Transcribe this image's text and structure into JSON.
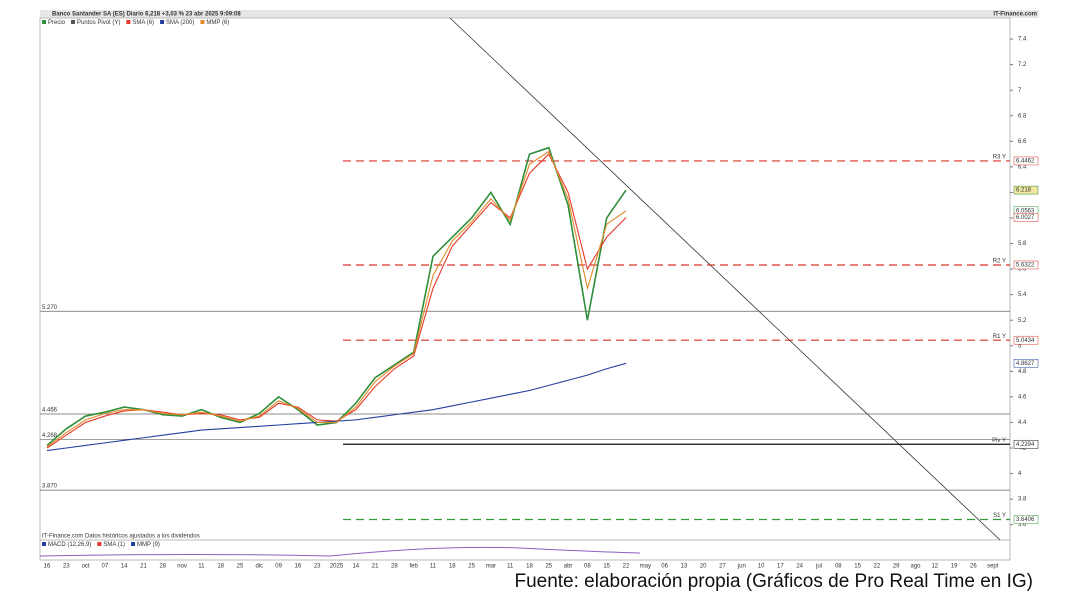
{
  "chart_data": {
    "type": "line",
    "title": "Banco Santander SA (ES) Diario 6,218 +3,03 % 23 abr 2025 9:09:08",
    "source": "IT-Finance.com",
    "categories": [
      "16",
      "23",
      "oct",
      "07",
      "14",
      "21",
      "28",
      "nov",
      "11",
      "18",
      "25",
      "dic",
      "09",
      "16",
      "23",
      "2025",
      "14",
      "21",
      "28",
      "feb",
      "11",
      "18",
      "25",
      "mar",
      "11",
      "18",
      "25",
      "abr",
      "08",
      "15",
      "22",
      "may",
      "06",
      "13",
      "20",
      "27",
      "jun",
      "10",
      "17",
      "24",
      "jul",
      "08",
      "15",
      "22",
      "29",
      "ago",
      "12",
      "19",
      "26",
      "sept"
    ],
    "series": [
      {
        "name": "Precio",
        "color": "#2f8f3a",
        "values": [
          4.22,
          4.35,
          4.45,
          4.48,
          4.52,
          4.5,
          4.46,
          4.45,
          4.5,
          4.44,
          4.4,
          4.47,
          4.6,
          4.5,
          4.38,
          4.4,
          4.55,
          4.75,
          4.85,
          4.95,
          5.7,
          5.85,
          6.0,
          6.2,
          5.95,
          6.5,
          6.55,
          6.1,
          5.2,
          6.0,
          6.218,
          null,
          null,
          null,
          null,
          null,
          null,
          null,
          null,
          null,
          null,
          null,
          null,
          null,
          null,
          null,
          null,
          null,
          null,
          null
        ]
      },
      {
        "name": "SMA (6)",
        "color": "#e53a2a",
        "values": [
          4.2,
          4.3,
          4.4,
          4.45,
          4.49,
          4.5,
          4.48,
          4.46,
          4.47,
          4.46,
          4.42,
          4.44,
          4.55,
          4.52,
          4.42,
          4.41,
          4.5,
          4.68,
          4.82,
          4.92,
          5.45,
          5.78,
          5.95,
          6.12,
          6.0,
          6.35,
          6.5,
          6.2,
          5.6,
          5.85,
          6.0027,
          null,
          null,
          null,
          null,
          null,
          null,
          null,
          null,
          null,
          null,
          null,
          null,
          null,
          null,
          null,
          null,
          null,
          null,
          null
        ]
      },
      {
        "name": "SMA (200)",
        "color": "#2340a0",
        "values": [
          4.18,
          4.2,
          4.22,
          4.24,
          4.26,
          4.28,
          4.3,
          4.32,
          4.34,
          4.35,
          4.36,
          4.37,
          4.38,
          4.39,
          4.4,
          4.41,
          4.42,
          4.44,
          4.46,
          4.48,
          4.5,
          4.53,
          4.56,
          4.59,
          4.62,
          4.65,
          4.69,
          4.73,
          4.77,
          4.82,
          4.8627,
          null,
          null,
          null,
          null,
          null,
          null,
          null,
          null,
          null,
          null,
          null,
          null,
          null,
          null,
          null,
          null,
          null,
          null,
          null
        ]
      },
      {
        "name": "MMP (6)",
        "color": "#e08a2a",
        "values": [
          4.21,
          4.32,
          4.42,
          4.47,
          4.5,
          4.5,
          4.47,
          4.46,
          4.48,
          4.45,
          4.41,
          4.45,
          4.57,
          4.51,
          4.4,
          4.4,
          4.52,
          4.72,
          4.84,
          4.94,
          5.55,
          5.82,
          5.97,
          6.15,
          5.98,
          6.42,
          6.52,
          6.15,
          5.45,
          5.95,
          6.0563,
          null,
          null,
          null,
          null,
          null,
          null,
          null,
          null,
          null,
          null,
          null,
          null,
          null,
          null,
          null,
          null,
          null,
          null,
          null
        ]
      }
    ],
    "pivot": {
      "name": "Puntos Pivot (Y)",
      "levels": [
        {
          "label": "R3 Y",
          "value": 6.4462,
          "color": "#d9342b"
        },
        {
          "label": "R2 Y",
          "value": 5.6322,
          "color": "#d9342b"
        },
        {
          "label": "R1 Y",
          "value": 5.0434,
          "color": "#d9342b"
        },
        {
          "label": "Piv Y",
          "value": 4.2294,
          "color": "#111111"
        },
        {
          "label": "S1 Y",
          "value": 3.6406,
          "color": "#2f9e3a"
        }
      ]
    },
    "support_lines": [
      {
        "value": 5.27,
        "label": "5.270"
      },
      {
        "value": 4.466,
        "label": "4.466"
      },
      {
        "value": 4.268,
        "label": "4.268"
      },
      {
        "value": 3.87,
        "label": "3.870"
      }
    ],
    "value_tags": [
      {
        "value": 6.218,
        "color": "#2f8f3a"
      },
      {
        "value": 6.0563,
        "color": "#2f9e3a"
      },
      {
        "value": 6.0027,
        "color": "#d9342b"
      },
      {
        "value": 4.8627,
        "color": "#2340a0"
      }
    ],
    "ylim": [
      3.48,
      7.51
    ],
    "yticks": [
      7.4,
      7.2,
      7,
      6.8,
      6.6,
      6.4,
      6.2,
      6,
      5.8,
      5.6,
      5.4,
      5.2,
      5,
      4.8,
      4.6,
      4.4,
      4.2,
      4,
      3.8,
      3.6
    ],
    "note": "IT-Finance.com Datos históricos ajustados a los dividendos",
    "indicator_legend": [
      {
        "name": "MACD (12,26,9)",
        "color": "#2340a0"
      },
      {
        "name": "SMA (1)",
        "color": "#e53a2a"
      },
      {
        "name": "MMP (9)",
        "color": "#2340a0"
      }
    ]
  },
  "caption": "Fuente: elaboración propia (Gráficos de Pro Real Time en IG)"
}
